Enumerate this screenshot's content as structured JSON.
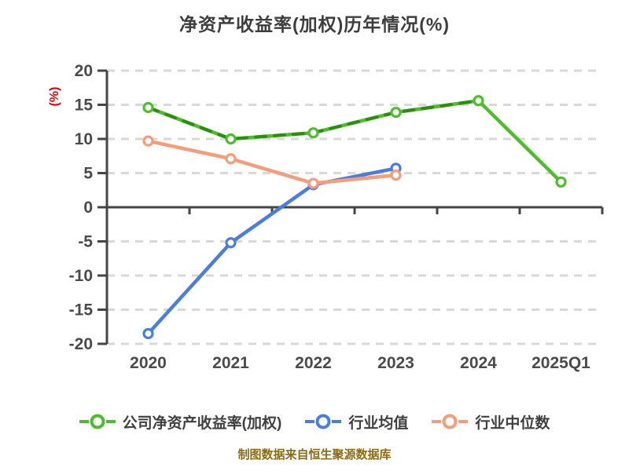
{
  "title": "净资产收益率(加权)历年情况(%)",
  "footer": "制图数据来自恒生聚源数据库",
  "colors": {
    "title_text": "#3D3D3D",
    "footer_text": "#8A6C11",
    "y_unit_label": "#E50000",
    "axis": "#454545",
    "tick_text": "#4A4A4A",
    "grid": "#D8D8D8",
    "marker_fill": "#FFFFFF",
    "legend_text": "#3F3F3F"
  },
  "chart_data": {
    "type": "line",
    "title": "净资产收益率(加权)历年情况(%)",
    "xlabel": "",
    "ylabel": "(%)",
    "categories": [
      "2020",
      "2021",
      "2022",
      "2023",
      "2024",
      "2025Q1"
    ],
    "yticks": [
      20,
      15,
      10,
      5,
      0,
      -5,
      -10,
      -15,
      -20
    ],
    "ylim": [
      -20,
      20
    ],
    "grid": true,
    "grid_style": "dashed",
    "legend_position": "bottom",
    "series": [
      {
        "name": "公司净资产收益率(加权)",
        "color": "#4DBE2B",
        "values": [
          14.6,
          10.0,
          10.9,
          13.9,
          15.6,
          3.7
        ],
        "dash_overlay": {
          "color": "#2A8F0B",
          "to_index": 4
        }
      },
      {
        "name": "行业均值",
        "color": "#4A7DE2",
        "values": [
          -18.5,
          -5.2,
          3.3,
          5.7,
          null,
          null
        ]
      },
      {
        "name": "行业中位数",
        "color": "#F59D78",
        "values": [
          9.7,
          7.1,
          3.5,
          4.7,
          null,
          null
        ]
      }
    ]
  },
  "legend": {
    "items": [
      {
        "label": "公司净资产收益率(加权)"
      },
      {
        "label": "行业均值"
      },
      {
        "label": "行业中位数"
      }
    ]
  }
}
